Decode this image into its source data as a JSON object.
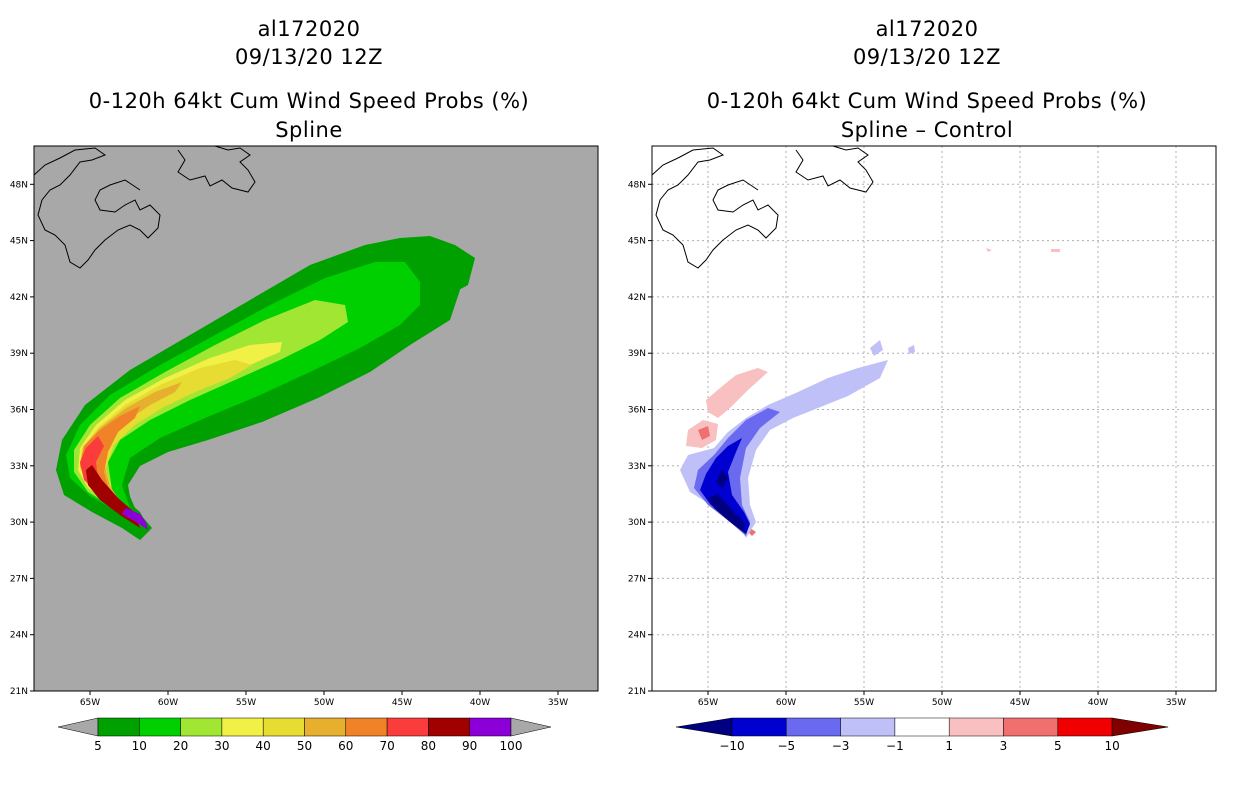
{
  "panels": {
    "left": {
      "storm_id": "al172020",
      "datetime": "09/13/20 12Z",
      "product": "0-120h 64kt Cum Wind Speed Probs (%)",
      "subtitle": "Spline"
    },
    "right": {
      "storm_id": "al172020",
      "datetime": "09/13/20 12Z",
      "product": "0-120h 64kt Cum Wind Speed Probs (%)",
      "subtitle": "Spline – Control"
    }
  },
  "axes": {
    "lat_labels": [
      "21N",
      "24N",
      "27N",
      "30N",
      "33N",
      "36N",
      "39N",
      "42N",
      "45N",
      "48N"
    ],
    "lon_labels": [
      "65W",
      "60W",
      "55W",
      "50W",
      "45W",
      "40W",
      "35W"
    ]
  },
  "legends": {
    "left": {
      "labels": [
        "5",
        "10",
        "20",
        "30",
        "40",
        "50",
        "60",
        "70",
        "80",
        "90",
        "100"
      ],
      "colors": [
        "#00a000",
        "#00d000",
        "#a0e632",
        "#f0f046",
        "#e6dc32",
        "#e6af2d",
        "#f08228",
        "#fa3c3c",
        "#a00000",
        "#8c00d8"
      ],
      "end_color": "#a8a8a8"
    },
    "right": {
      "labels": [
        "−10",
        "−5",
        "−3",
        "−1",
        "1",
        "3",
        "5",
        "10"
      ],
      "colors": [
        "#0000d0",
        "#6a6af0",
        "#c0c0f8",
        "#ffffff",
        "#f8c0c0",
        "#f07070",
        "#f00000"
      ],
      "low_color": "#000080",
      "high_color": "#800000"
    }
  }
}
